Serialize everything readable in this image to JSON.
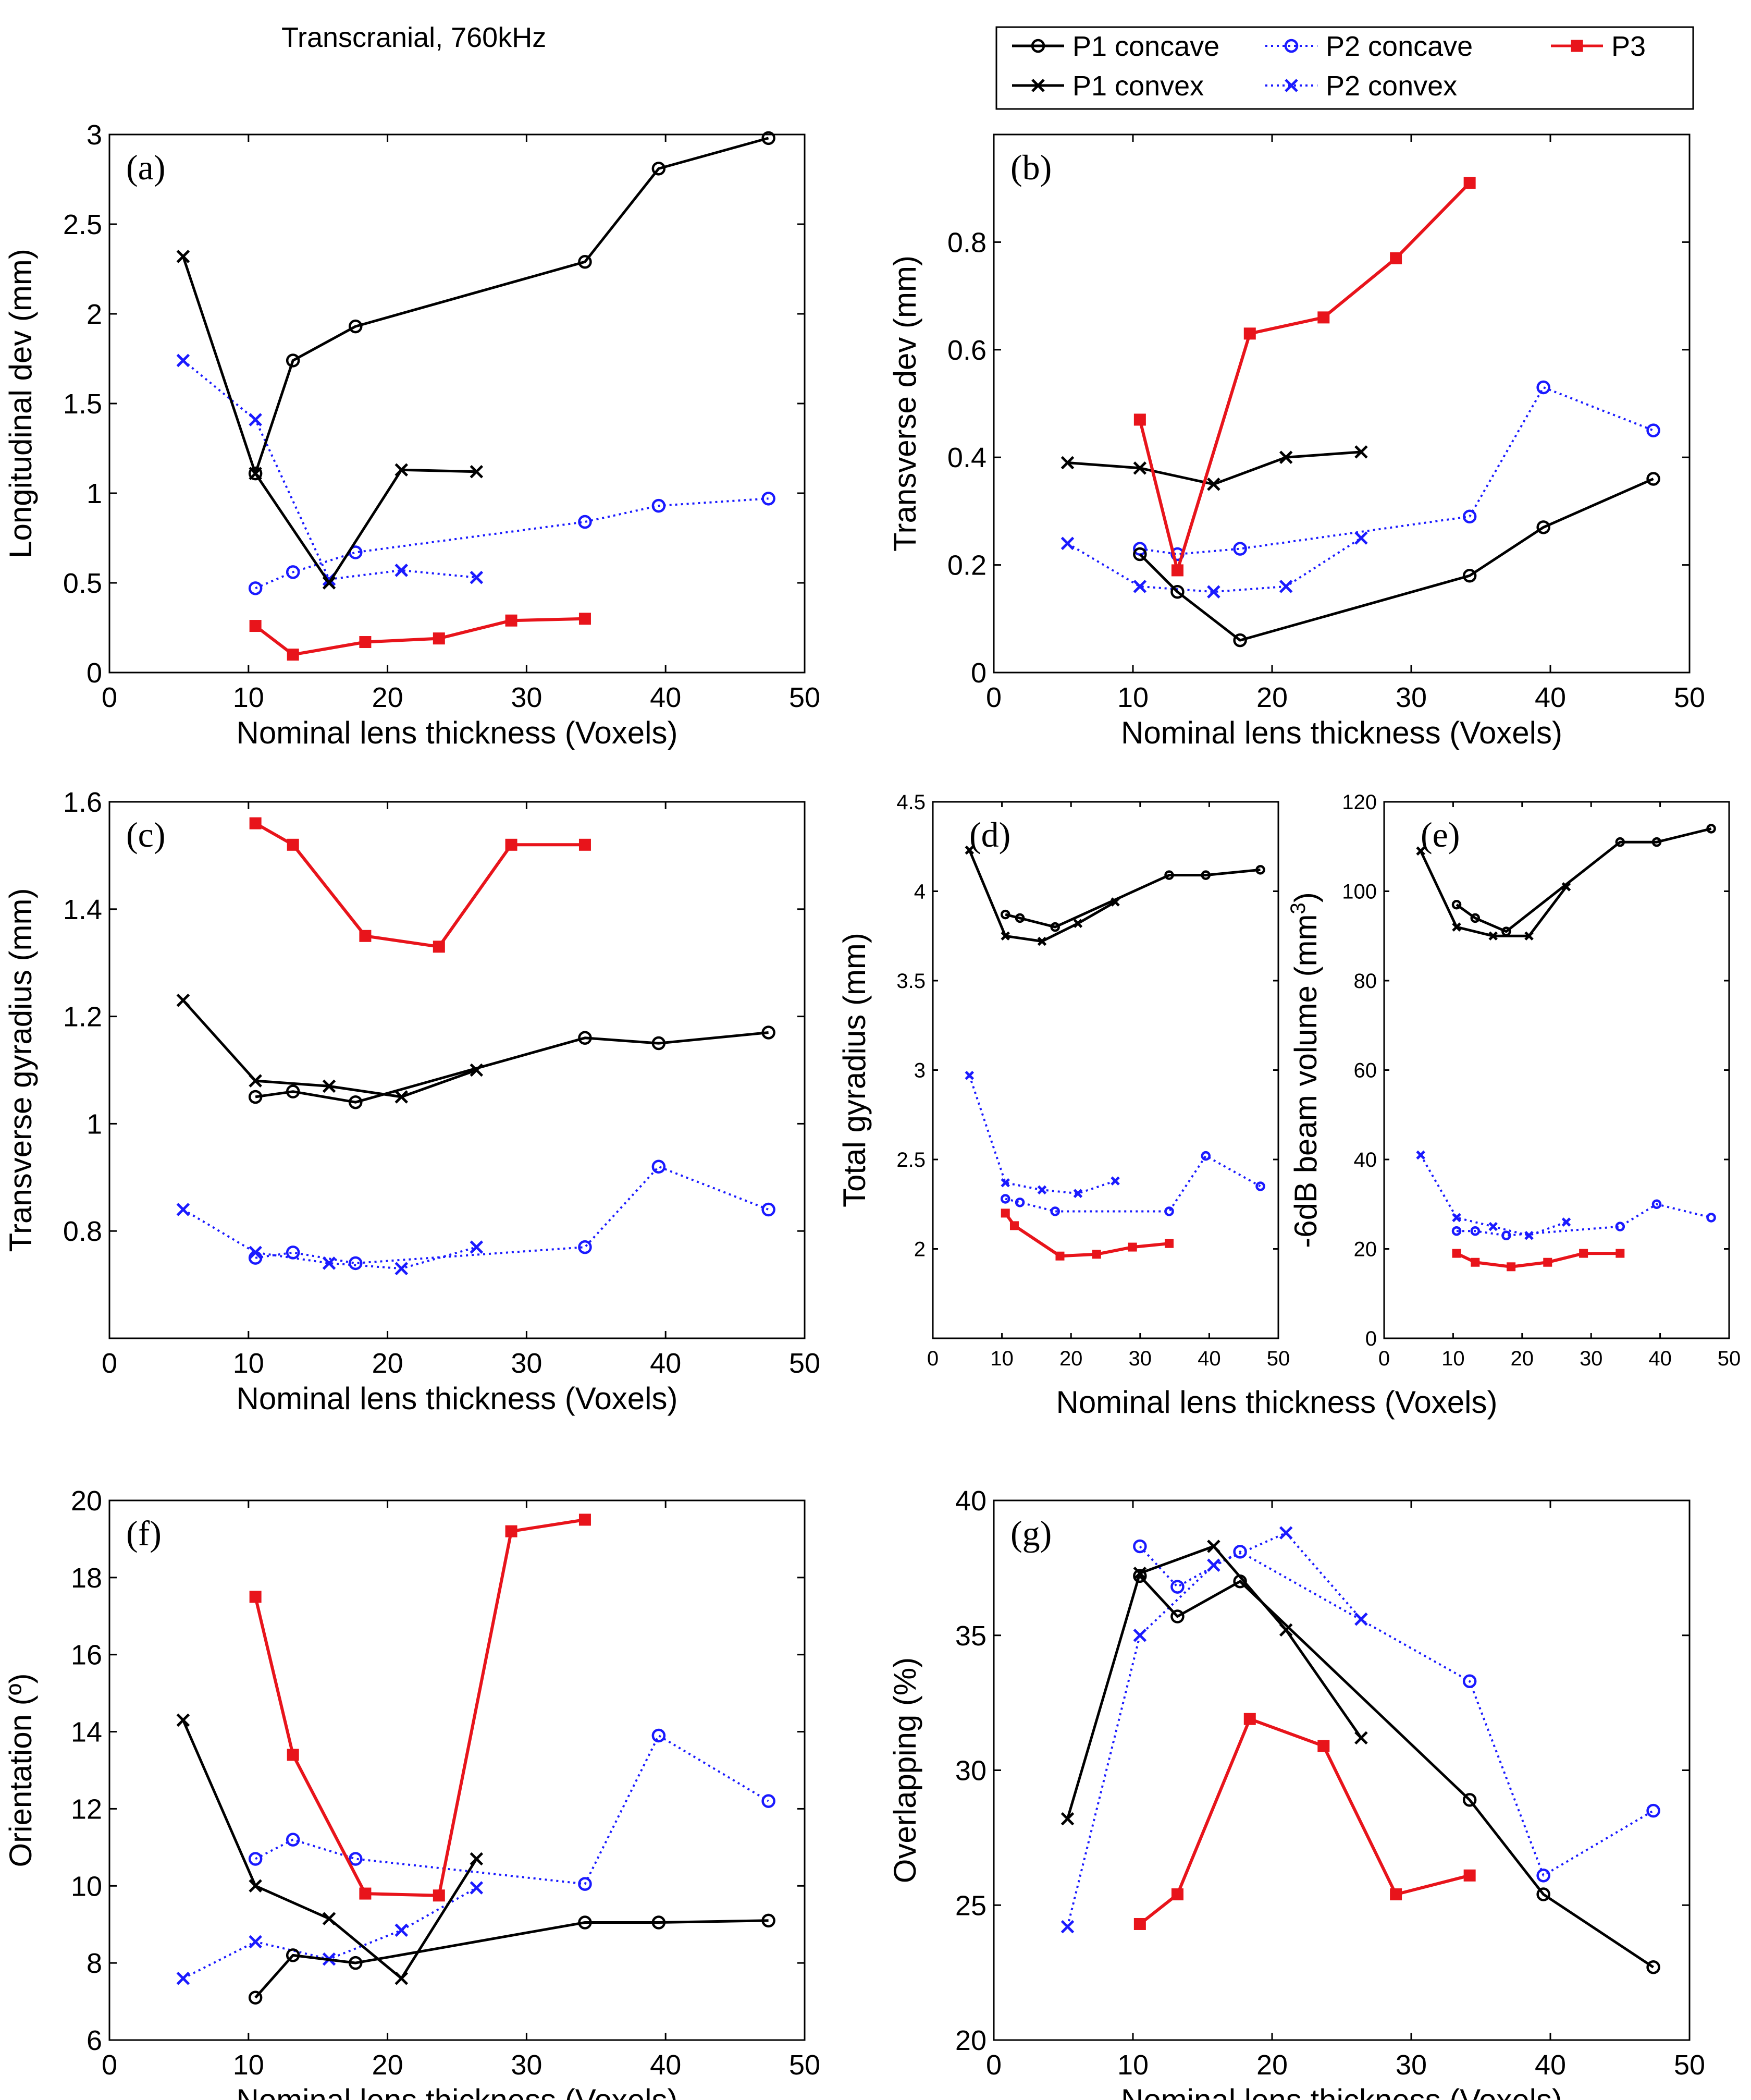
{
  "figure_title": "Transcranial, 760kHz",
  "legend": {
    "entries": [
      {
        "key": "P1concave",
        "label": "P1 concave"
      },
      {
        "key": "P2concave",
        "label": "P2 concave"
      },
      {
        "key": "P3",
        "label": "P3"
      },
      {
        "key": "P1convex",
        "label": "P1 convex"
      },
      {
        "key": "P2convex",
        "label": "P2 convex"
      }
    ]
  },
  "series_styles": {
    "P1concave": {
      "color": "#000000",
      "marker": "circle",
      "dash": "solid"
    },
    "P1convex": {
      "color": "#000000",
      "marker": "x",
      "dash": "solid"
    },
    "P2concave": {
      "color": "#1a1aff",
      "marker": "circle",
      "dash": "dotted"
    },
    "P2convex": {
      "color": "#1a1aff",
      "marker": "x",
      "dash": "dotted"
    },
    "P3": {
      "color": "#e8141b",
      "marker": "square",
      "dash": "solid"
    }
  },
  "chart_data": [
    {
      "id": "a",
      "type": "line",
      "panel_label": "(a)",
      "xlabel": "Nominal lens thickness (Voxels)",
      "ylabel": "Longitudinal dev (mm)",
      "xlim": [
        0,
        50
      ],
      "ylim": [
        0,
        3
      ],
      "xticks": [
        0,
        10,
        20,
        30,
        40,
        50
      ],
      "yticks": [
        0,
        0.5,
        1,
        1.5,
        2,
        2.5,
        3
      ],
      "series": [
        {
          "name": "P1concave",
          "x": [
            10.5,
            13.2,
            17.7,
            34.2,
            39.5,
            47.4
          ],
          "y": [
            1.11,
            1.74,
            1.93,
            2.29,
            2.81,
            2.98
          ]
        },
        {
          "name": "P1convex",
          "x": [
            5.3,
            10.5,
            15.8,
            21.0,
            26.4
          ],
          "y": [
            2.32,
            1.11,
            0.5,
            1.13,
            1.12
          ]
        },
        {
          "name": "P2concave",
          "x": [
            10.5,
            13.2,
            17.7,
            34.2,
            39.5,
            47.4
          ],
          "y": [
            0.47,
            0.56,
            0.67,
            0.84,
            0.93,
            0.97
          ]
        },
        {
          "name": "P2convex",
          "x": [
            5.3,
            10.5,
            15.8,
            21.0,
            26.4
          ],
          "y": [
            1.74,
            1.41,
            0.52,
            0.57,
            0.53
          ]
        },
        {
          "name": "P3",
          "x": [
            10.5,
            13.2,
            18.4,
            23.7,
            28.9,
            34.2
          ],
          "y": [
            0.26,
            0.1,
            0.17,
            0.19,
            0.29,
            0.3
          ]
        }
      ]
    },
    {
      "id": "b",
      "type": "line",
      "panel_label": "(b)",
      "xlabel": "Nominal lens thickness (Voxels)",
      "ylabel": "Transverse dev (mm)",
      "xlim": [
        0,
        50
      ],
      "ylim": [
        0,
        1.0
      ],
      "xticks": [
        0,
        10,
        20,
        30,
        40,
        50
      ],
      "yticks": [
        0,
        0.2,
        0.4,
        0.6,
        0.8
      ],
      "series": [
        {
          "name": "P1concave",
          "x": [
            10.5,
            13.2,
            17.7,
            34.2,
            39.5,
            47.4
          ],
          "y": [
            0.22,
            0.15,
            0.06,
            0.18,
            0.27,
            0.36
          ]
        },
        {
          "name": "P1convex",
          "x": [
            5.3,
            10.5,
            15.8,
            21.0,
            26.4
          ],
          "y": [
            0.39,
            0.38,
            0.35,
            0.4,
            0.41
          ]
        },
        {
          "name": "P2concave",
          "x": [
            10.5,
            13.2,
            17.7,
            34.2,
            39.5,
            47.4
          ],
          "y": [
            0.23,
            0.22,
            0.23,
            0.29,
            0.53,
            0.45
          ]
        },
        {
          "name": "P2convex",
          "x": [
            5.3,
            10.5,
            15.8,
            21.0,
            26.4
          ],
          "y": [
            0.24,
            0.16,
            0.15,
            0.16,
            0.25
          ]
        },
        {
          "name": "P3",
          "x": [
            10.5,
            13.2,
            18.4,
            23.7,
            28.9,
            34.2
          ],
          "y": [
            0.47,
            0.19,
            0.63,
            0.66,
            0.77,
            0.91
          ]
        }
      ]
    },
    {
      "id": "c",
      "type": "line",
      "panel_label": "(c)",
      "xlabel": "Nominal lens thickness (Voxels)",
      "ylabel": "Transverse gyradius (mm)",
      "xlim": [
        0,
        50
      ],
      "ylim": [
        0.6,
        1.6
      ],
      "xticks": [
        0,
        10,
        20,
        30,
        40,
        50
      ],
      "yticks": [
        0.8,
        1,
        1.2,
        1.4,
        1.6
      ],
      "series": [
        {
          "name": "P1concave",
          "x": [
            10.5,
            13.2,
            17.7,
            34.2,
            39.5,
            47.4
          ],
          "y": [
            1.05,
            1.06,
            1.04,
            1.16,
            1.15,
            1.17
          ]
        },
        {
          "name": "P1convex",
          "x": [
            5.3,
            10.5,
            15.8,
            21.0,
            26.4
          ],
          "y": [
            1.23,
            1.08,
            1.07,
            1.05,
            1.1
          ]
        },
        {
          "name": "P2concave",
          "x": [
            10.5,
            13.2,
            17.7,
            34.2,
            39.5,
            47.4
          ],
          "y": [
            0.75,
            0.76,
            0.74,
            0.77,
            0.92,
            0.84
          ]
        },
        {
          "name": "P2convex",
          "x": [
            5.3,
            10.5,
            15.8,
            21.0,
            26.4
          ],
          "y": [
            0.84,
            0.76,
            0.74,
            0.73,
            0.77
          ]
        },
        {
          "name": "P3",
          "x": [
            10.5,
            13.2,
            18.4,
            23.7,
            28.9,
            34.2
          ],
          "y": [
            1.56,
            1.52,
            1.35,
            1.33,
            1.52,
            1.52
          ]
        }
      ]
    },
    {
      "id": "d",
      "type": "line",
      "panel_label": "(d)",
      "xlabel": "",
      "ylabel": "Total gyradius (mm)",
      "xlim": [
        0,
        50
      ],
      "ylim": [
        1.5,
        4.5
      ],
      "xticks": [
        0,
        10,
        20,
        30,
        40,
        50
      ],
      "yticks": [
        2,
        2.5,
        3,
        3.5,
        4,
        4.5
      ],
      "series": [
        {
          "name": "P1concave",
          "x": [
            10.5,
            12.6,
            17.7,
            34.2,
            39.5,
            47.4
          ],
          "y": [
            3.87,
            3.85,
            3.8,
            4.09,
            4.09,
            4.12
          ]
        },
        {
          "name": "P1convex",
          "x": [
            5.3,
            10.5,
            15.8,
            21.0,
            26.4
          ],
          "y": [
            4.23,
            3.75,
            3.72,
            3.82,
            3.94
          ]
        },
        {
          "name": "P2concave",
          "x": [
            10.5,
            12.6,
            17.7,
            34.2,
            39.5,
            47.4
          ],
          "y": [
            2.28,
            2.26,
            2.21,
            2.21,
            2.52,
            2.35
          ]
        },
        {
          "name": "P2convex",
          "x": [
            5.3,
            10.5,
            15.8,
            21.0,
            26.4
          ],
          "y": [
            2.97,
            2.37,
            2.33,
            2.31,
            2.38
          ]
        },
        {
          "name": "P3",
          "x": [
            10.5,
            11.8,
            18.4,
            23.7,
            28.9,
            34.2
          ],
          "y": [
            2.2,
            2.13,
            1.96,
            1.97,
            2.01,
            2.03
          ]
        }
      ]
    },
    {
      "id": "e",
      "type": "line",
      "panel_label": "(e)",
      "xlabel": "",
      "ylabel": "-6dB beam volume (mm",
      "ylabel_superscript": "3",
      "ylabel_suffix": ")",
      "xlim": [
        0,
        50
      ],
      "ylim": [
        0,
        120
      ],
      "xticks": [
        0,
        10,
        20,
        30,
        40,
        50
      ],
      "yticks": [
        0,
        20,
        40,
        60,
        80,
        100,
        120
      ],
      "series": [
        {
          "name": "P1concave",
          "x": [
            10.5,
            13.2,
            17.7,
            34.2,
            39.5,
            47.4
          ],
          "y": [
            97,
            94,
            91,
            111,
            111,
            114
          ]
        },
        {
          "name": "P1convex",
          "x": [
            5.3,
            10.5,
            15.8,
            21.0,
            26.4
          ],
          "y": [
            109,
            92,
            90,
            90,
            101
          ]
        },
        {
          "name": "P2concave",
          "x": [
            10.5,
            13.2,
            17.7,
            34.2,
            39.5,
            47.4
          ],
          "y": [
            24,
            24,
            23,
            25,
            30,
            27
          ]
        },
        {
          "name": "P2convex",
          "x": [
            5.3,
            10.5,
            15.8,
            21.0,
            26.4
          ],
          "y": [
            41,
            27,
            25,
            23,
            26
          ]
        },
        {
          "name": "P3",
          "x": [
            10.5,
            13.2,
            18.4,
            23.7,
            28.9,
            34.2
          ],
          "y": [
            19,
            17,
            16,
            17,
            19,
            19
          ]
        }
      ]
    },
    {
      "id": "f",
      "type": "line",
      "panel_label": "(f)",
      "xlabel": "Nominal lens thickness (Voxels)",
      "ylabel": "Orientation (º)",
      "xlim": [
        0,
        50
      ],
      "ylim": [
        6,
        20
      ],
      "xticks": [
        0,
        10,
        20,
        30,
        40,
        50
      ],
      "yticks": [
        6,
        8,
        10,
        12,
        14,
        16,
        18,
        20
      ],
      "series": [
        {
          "name": "P1concave",
          "x": [
            10.5,
            13.2,
            17.7,
            34.2,
            39.5,
            47.4
          ],
          "y": [
            7.1,
            8.2,
            8.0,
            9.05,
            9.05,
            9.1
          ]
        },
        {
          "name": "P1convex",
          "x": [
            5.3,
            10.5,
            15.8,
            21.0,
            26.4
          ],
          "y": [
            14.3,
            10.0,
            9.15,
            7.6,
            10.7
          ]
        },
        {
          "name": "P2concave",
          "x": [
            10.5,
            13.2,
            17.7,
            34.2,
            39.5,
            47.4
          ],
          "y": [
            10.7,
            11.2,
            10.7,
            10.05,
            13.9,
            12.2
          ]
        },
        {
          "name": "P2convex",
          "x": [
            5.3,
            10.5,
            15.8,
            21.0,
            26.4
          ],
          "y": [
            7.6,
            8.55,
            8.1,
            8.85,
            9.95
          ]
        },
        {
          "name": "P3",
          "x": [
            10.5,
            13.2,
            18.4,
            23.7,
            28.9,
            34.2
          ],
          "y": [
            17.5,
            13.4,
            9.8,
            9.75,
            19.2,
            19.5
          ]
        }
      ]
    },
    {
      "id": "g",
      "type": "line",
      "panel_label": "(g)",
      "xlabel": "Nominal lens thickness (Voxels)",
      "ylabel": "Overlapping (%)",
      "xlim": [
        0,
        50
      ],
      "ylim": [
        20,
        40
      ],
      "xticks": [
        0,
        10,
        20,
        30,
        40,
        50
      ],
      "yticks": [
        20,
        25,
        30,
        35,
        40
      ],
      "series": [
        {
          "name": "P1concave",
          "x": [
            10.5,
            13.2,
            17.7,
            34.2,
            39.5,
            47.4
          ],
          "y": [
            37.2,
            35.7,
            37.0,
            28.9,
            25.4,
            22.7
          ]
        },
        {
          "name": "P1convex",
          "x": [
            5.3,
            10.5,
            15.8,
            21.0,
            26.4
          ],
          "y": [
            28.2,
            37.3,
            38.3,
            35.2,
            31.2
          ]
        },
        {
          "name": "P2concave",
          "x": [
            10.5,
            13.2,
            17.7,
            34.2,
            39.5,
            47.4
          ],
          "y": [
            38.3,
            36.8,
            38.1,
            33.3,
            26.1,
            28.5
          ]
        },
        {
          "name": "P2convex",
          "x": [
            5.3,
            10.5,
            15.8,
            21.0,
            26.4
          ],
          "y": [
            24.2,
            35.0,
            37.6,
            38.8,
            35.6
          ]
        },
        {
          "name": "P3",
          "x": [
            10.5,
            13.2,
            18.4,
            23.7,
            28.9,
            34.2
          ],
          "y": [
            24.3,
            25.4,
            31.9,
            30.9,
            25.4,
            26.1
          ]
        }
      ]
    }
  ],
  "shared_xlabel_de": "Nominal lens thickness (Voxels)"
}
